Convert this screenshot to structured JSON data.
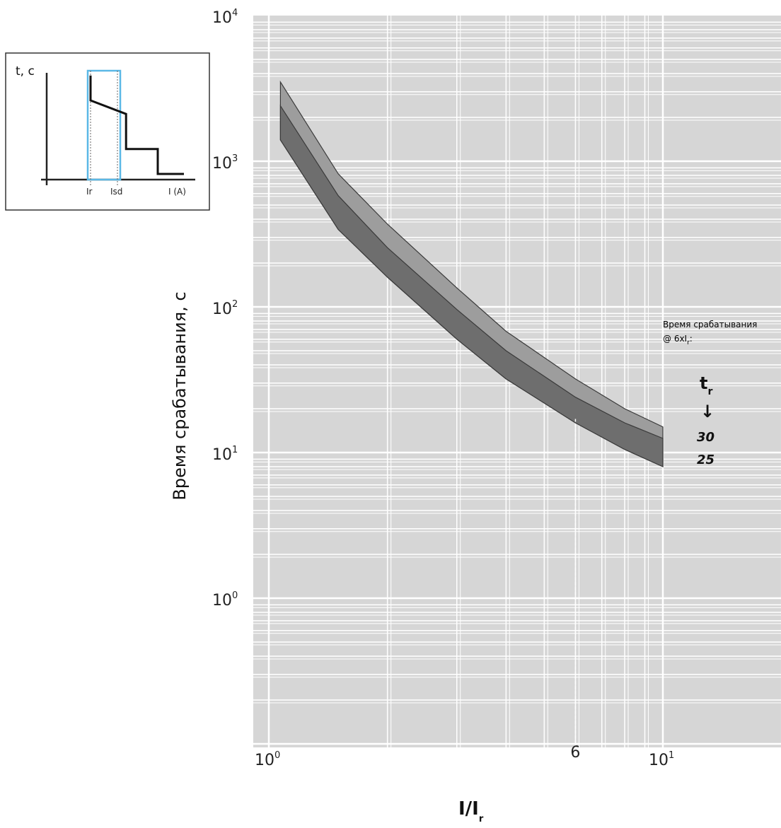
{
  "chart_data": {
    "type": "area",
    "scale": {
      "x": "log",
      "y": "log"
    },
    "xlim": [
      1,
      20
    ],
    "ylim": [
      0.03,
      10000
    ],
    "x_tick_labels": [
      {
        "value": 1,
        "base": "10",
        "exp": "0"
      },
      {
        "value": 10,
        "base": "10",
        "exp": "1"
      }
    ],
    "y_tick_labels": [
      {
        "value": 10000,
        "base": "10",
        "exp": "4"
      },
      {
        "value": 1000,
        "base": "10",
        "exp": "3"
      },
      {
        "value": 100,
        "base": "10",
        "exp": "2"
      },
      {
        "value": 10,
        "base": "10",
        "exp": "1"
      },
      {
        "value": 1,
        "base": "10",
        "exp": "0"
      }
    ],
    "xlabel": {
      "main": "I/I",
      "sub": "r"
    },
    "ylabel": "Время срабатывания, с",
    "grid": true,
    "colors": {
      "background": "#d6d6d6",
      "grid": "#ffffff",
      "band_outer": "#9d9d9d",
      "band_inner": "#6e6e6e",
      "edge": "#3a3a3a",
      "inset_box": "#5bb8e6"
    },
    "bands": [
      {
        "setting": "30",
        "x": [
          1.07,
          1.5,
          2,
          3,
          4,
          6,
          8,
          10
        ],
        "upper": [
          3500,
          820,
          370,
          135,
          68,
          32,
          20,
          15
        ],
        "lower": [
          1400,
          340,
          160,
          60,
          32,
          16,
          10.5,
          8
        ]
      },
      {
        "setting": "25",
        "x": [
          1.07,
          1.5,
          2,
          3,
          4,
          6,
          8,
          10
        ],
        "upper": [
          2400,
          580,
          255,
          96,
          50,
          24,
          16,
          12.5
        ],
        "lower": [
          1400,
          340,
          160,
          60,
          32,
          16,
          10.5,
          8
        ]
      }
    ],
    "marker": {
      "x": 6,
      "label": "6",
      "y_from": 17
    },
    "annotation": {
      "line1": "Время срабатывания",
      "line2_main": "@ 6xI",
      "line2_sub": "r",
      "line2_tail": ":",
      "tr_main": "t",
      "tr_sub": "r",
      "arrow": "↓",
      "settings": [
        "30",
        "25"
      ]
    },
    "inset": {
      "ylabel": "t, c",
      "xlabel": "I (A)",
      "marks": [
        "Ir",
        "Isd"
      ],
      "step_curve": [
        [
          0,
          0.92
        ],
        [
          0,
          0.7
        ],
        [
          0.38,
          0.58
        ],
        [
          0.38,
          0.27
        ],
        [
          0.72,
          0.27
        ],
        [
          0.72,
          0.05
        ],
        [
          1,
          0.05
        ]
      ]
    }
  }
}
